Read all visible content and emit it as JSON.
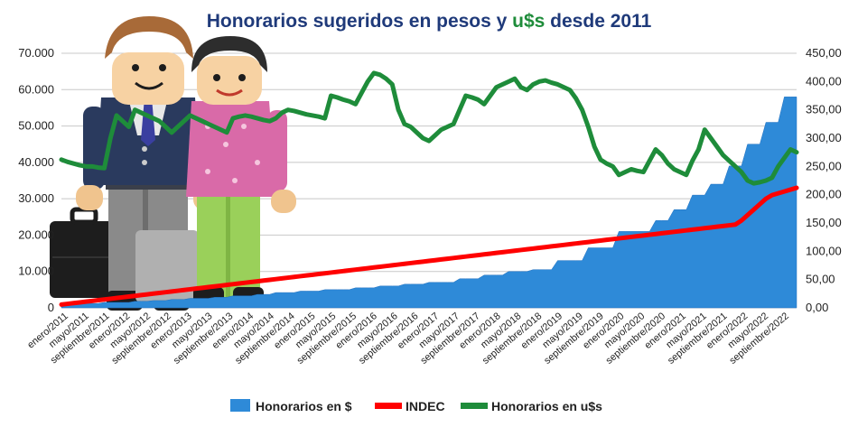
{
  "chart_data": {
    "type": "area",
    "title_parts": [
      {
        "text": "Honorarios  sugeridos  en pesos y ",
        "color": "#1f3a7a"
      },
      {
        "text": "u$s",
        "color": "#1e8c3a"
      },
      {
        "text": " desde 2011",
        "color": "#1f3a7a"
      }
    ],
    "y_left": {
      "min": 0,
      "max": 70000,
      "ticks": [
        "0",
        "10.000",
        "20.000",
        "30.000",
        "40.000",
        "50.000",
        "60.000",
        "70.000"
      ]
    },
    "y_right": {
      "min": 0,
      "max": 450,
      "ticks": [
        "0,00",
        "50,00",
        "100,00",
        "150,00",
        "200,00",
        "250,00",
        "300,00",
        "350,00",
        "400,00",
        "450,00"
      ]
    },
    "x_labels": [
      "enero/2011",
      "mayo/2011",
      "septiembre/2011",
      "enero/2012",
      "mayo/2012",
      "septiembre/2012",
      "enero/2013",
      "mayo/2013",
      "septiembre/2013",
      "enero/2014",
      "mayo/2014",
      "septiembre/2014",
      "enero/2015",
      "mayo/2015",
      "septiembre/2015",
      "enero/2016",
      "mayo/2016",
      "septiembre/2016",
      "enero/2017",
      "mayo/2017",
      "septiembre/2017",
      "enero/2018",
      "mayo/2018",
      "septiembre/2018",
      "enero/2019",
      "mayo/2019",
      "septiembre/2019",
      "enero/2020",
      "mayo/2020",
      "septiembre/2020",
      "enero/2021",
      "mayo/2021",
      "septiembre/2021",
      "enero/2022",
      "mayo/2022",
      "septiembre/2022"
    ],
    "grid": true,
    "legend_position": "bottom",
    "series": [
      {
        "name": "Honorarios en $",
        "axis": "left",
        "type": "area",
        "color": "#2e8ad8",
        "values": [
          1000,
          1000,
          1000,
          1000,
          1200,
          1200,
          1200,
          1500,
          1500,
          1500,
          1500,
          1500,
          1800,
          1800,
          1800,
          2000,
          2000,
          2000,
          2300,
          2300,
          2300,
          2600,
          2600,
          2600,
          2600,
          2900,
          2900,
          2900,
          3300,
          3300,
          3300,
          3300,
          3700,
          3700,
          3700,
          4200,
          4200,
          4200,
          4200,
          4600,
          4600,
          4600,
          4600,
          5000,
          5000,
          5000,
          5000,
          5000,
          5500,
          5500,
          5500,
          5500,
          6000,
          6000,
          6000,
          6000,
          6500,
          6500,
          6500,
          6500,
          7000,
          7000,
          7000,
          7000,
          7000,
          8000,
          8000,
          8000,
          8000,
          9000,
          9000,
          9000,
          9000,
          10000,
          10000,
          10000,
          10000,
          10500,
          10500,
          10500,
          10500,
          13000,
          13000,
          13000,
          13000,
          13000,
          16500,
          16500,
          16500,
          16500,
          16500,
          21000,
          21000,
          21000,
          21000,
          21000,
          21000,
          24000,
          24000,
          24000,
          27000,
          27000,
          27000,
          31000,
          31000,
          31000,
          34000,
          34000,
          34000,
          39000,
          39000,
          39000,
          45000,
          45000,
          45000,
          51000,
          51000,
          51000,
          58000,
          58000,
          58000
        ]
      },
      {
        "name": "INDEC",
        "axis": "left",
        "type": "line",
        "color": "#ff0000",
        "values": [
          900,
          1100,
          1300,
          1500,
          1700,
          1900,
          2100,
          2300,
          2500,
          2700,
          2900,
          3100,
          3300,
          3500,
          3700,
          3900,
          4100,
          4300,
          4500,
          4700,
          4900,
          5100,
          5300,
          5500,
          5700,
          5900,
          6100,
          6300,
          6500,
          6700,
          6900,
          7100,
          7300,
          7500,
          7700,
          7900,
          8100,
          8300,
          8500,
          8700,
          8900,
          9100,
          9300,
          9500,
          9700,
          9900,
          10100,
          10300,
          10500,
          10700,
          10900,
          11100,
          11300,
          11500,
          11700,
          11900,
          12100,
          12300,
          12500,
          12700,
          12900,
          13100,
          13300,
          13500,
          13700,
          13900,
          14100,
          14300,
          14500,
          14700,
          14900,
          15100,
          15300,
          15500,
          15700,
          15900,
          16100,
          16300,
          16500,
          16700,
          16900,
          17100,
          17300,
          17500,
          17700,
          17900,
          18100,
          18300,
          18500,
          18700,
          18900,
          19100,
          19300,
          19500,
          19700,
          19900,
          20100,
          20300,
          20500,
          20700,
          20900,
          21100,
          21300,
          21500,
          21700,
          21900,
          22100,
          22300,
          22500,
          22700,
          22900,
          24000,
          25500,
          27000,
          28500,
          30000,
          31000,
          31500,
          32000,
          32500,
          33000
        ]
      },
      {
        "name": "Honorarios en u$s",
        "axis": "right",
        "type": "line",
        "color": "#1e8c3a",
        "values": [
          262,
          258,
          255,
          252,
          250,
          250,
          248,
          247,
          300,
          340,
          330,
          320,
          350,
          345,
          340,
          335,
          330,
          320,
          310,
          320,
          330,
          340,
          335,
          330,
          325,
          320,
          315,
          310,
          335,
          338,
          340,
          338,
          335,
          332,
          330,
          335,
          345,
          350,
          348,
          345,
          342,
          340,
          338,
          335,
          375,
          372,
          368,
          365,
          360,
          380,
          400,
          415,
          412,
          405,
          395,
          350,
          325,
          320,
          310,
          300,
          295,
          305,
          315,
          320,
          325,
          350,
          375,
          372,
          368,
          360,
          375,
          390,
          395,
          400,
          405,
          390,
          385,
          395,
          400,
          402,
          398,
          395,
          390,
          385,
          370,
          350,
          320,
          285,
          262,
          255,
          250,
          235,
          240,
          245,
          242,
          240,
          260,
          280,
          270,
          255,
          245,
          240,
          235,
          260,
          280,
          315,
          300,
          285,
          270,
          260,
          250,
          240,
          225,
          220,
          222,
          225,
          230,
          250,
          265,
          280,
          275
        ]
      }
    ]
  }
}
